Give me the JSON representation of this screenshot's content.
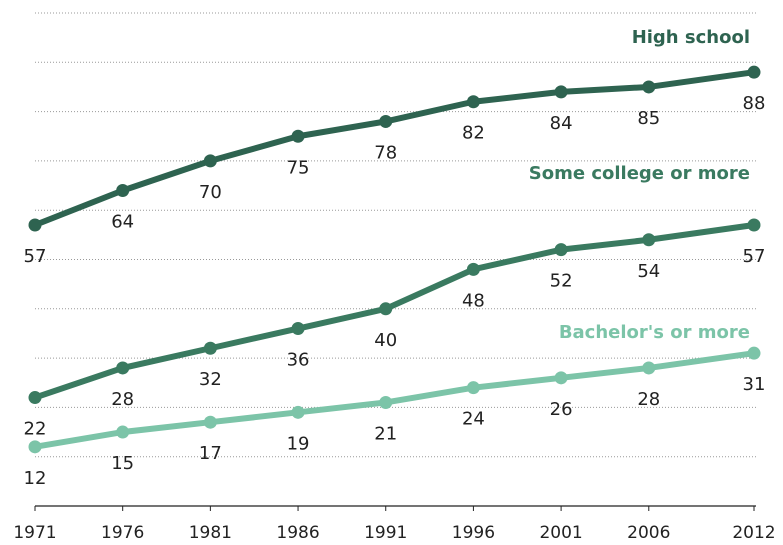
{
  "chart_data": {
    "type": "line",
    "x": [
      1971,
      1976,
      1981,
      1986,
      1991,
      1996,
      2001,
      2006,
      2012
    ],
    "xlim": [
      1971,
      2012
    ],
    "xticks": [
      1971,
      1976,
      1981,
      1986,
      1991,
      1996,
      2001,
      2006,
      2012
    ],
    "ylim": [
      0,
      100
    ],
    "yticks": [
      10,
      20,
      30,
      40,
      50,
      60,
      70,
      80,
      90,
      100
    ],
    "grid": true,
    "series": [
      {
        "name": "High school",
        "color": "#2e6350",
        "values": [
          57,
          64,
          70,
          75,
          78,
          82,
          84,
          85,
          88
        ]
      },
      {
        "name": "Some college or more",
        "color": "#3a7a60",
        "values": [
          22,
          28,
          32,
          36,
          40,
          48,
          52,
          54,
          57
        ]
      },
      {
        "name": "Bachelor's or more",
        "color": "#7cc4a8",
        "values": [
          12,
          15,
          17,
          19,
          21,
          24,
          26,
          28,
          31
        ]
      }
    ]
  }
}
